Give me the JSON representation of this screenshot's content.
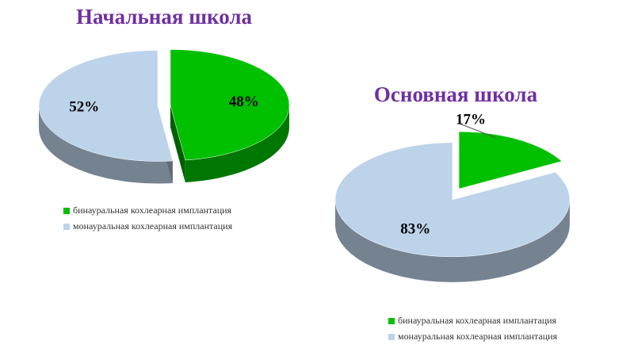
{
  "chart_data": [
    {
      "type": "pie",
      "title": "Начальная школа",
      "categories": [
        "бинауральная кохлеарная имплантация",
        "монауральная кохлеарная имплантация"
      ],
      "values": [
        48,
        52
      ],
      "value_labels": [
        "48%",
        "52%"
      ],
      "colors": [
        "#00c000",
        "#bcd3ea"
      ],
      "legend": "bottom"
    },
    {
      "type": "pie",
      "title": "Основная школа",
      "categories": [
        "бинауральная кохлеарная имплантация",
        "монауральная кохлеарная имплантация"
      ],
      "values": [
        17,
        83
      ],
      "value_labels": [
        "17%",
        "83%"
      ],
      "colors": [
        "#00c000",
        "#bcd3ea"
      ],
      "legend": "bottom"
    }
  ]
}
